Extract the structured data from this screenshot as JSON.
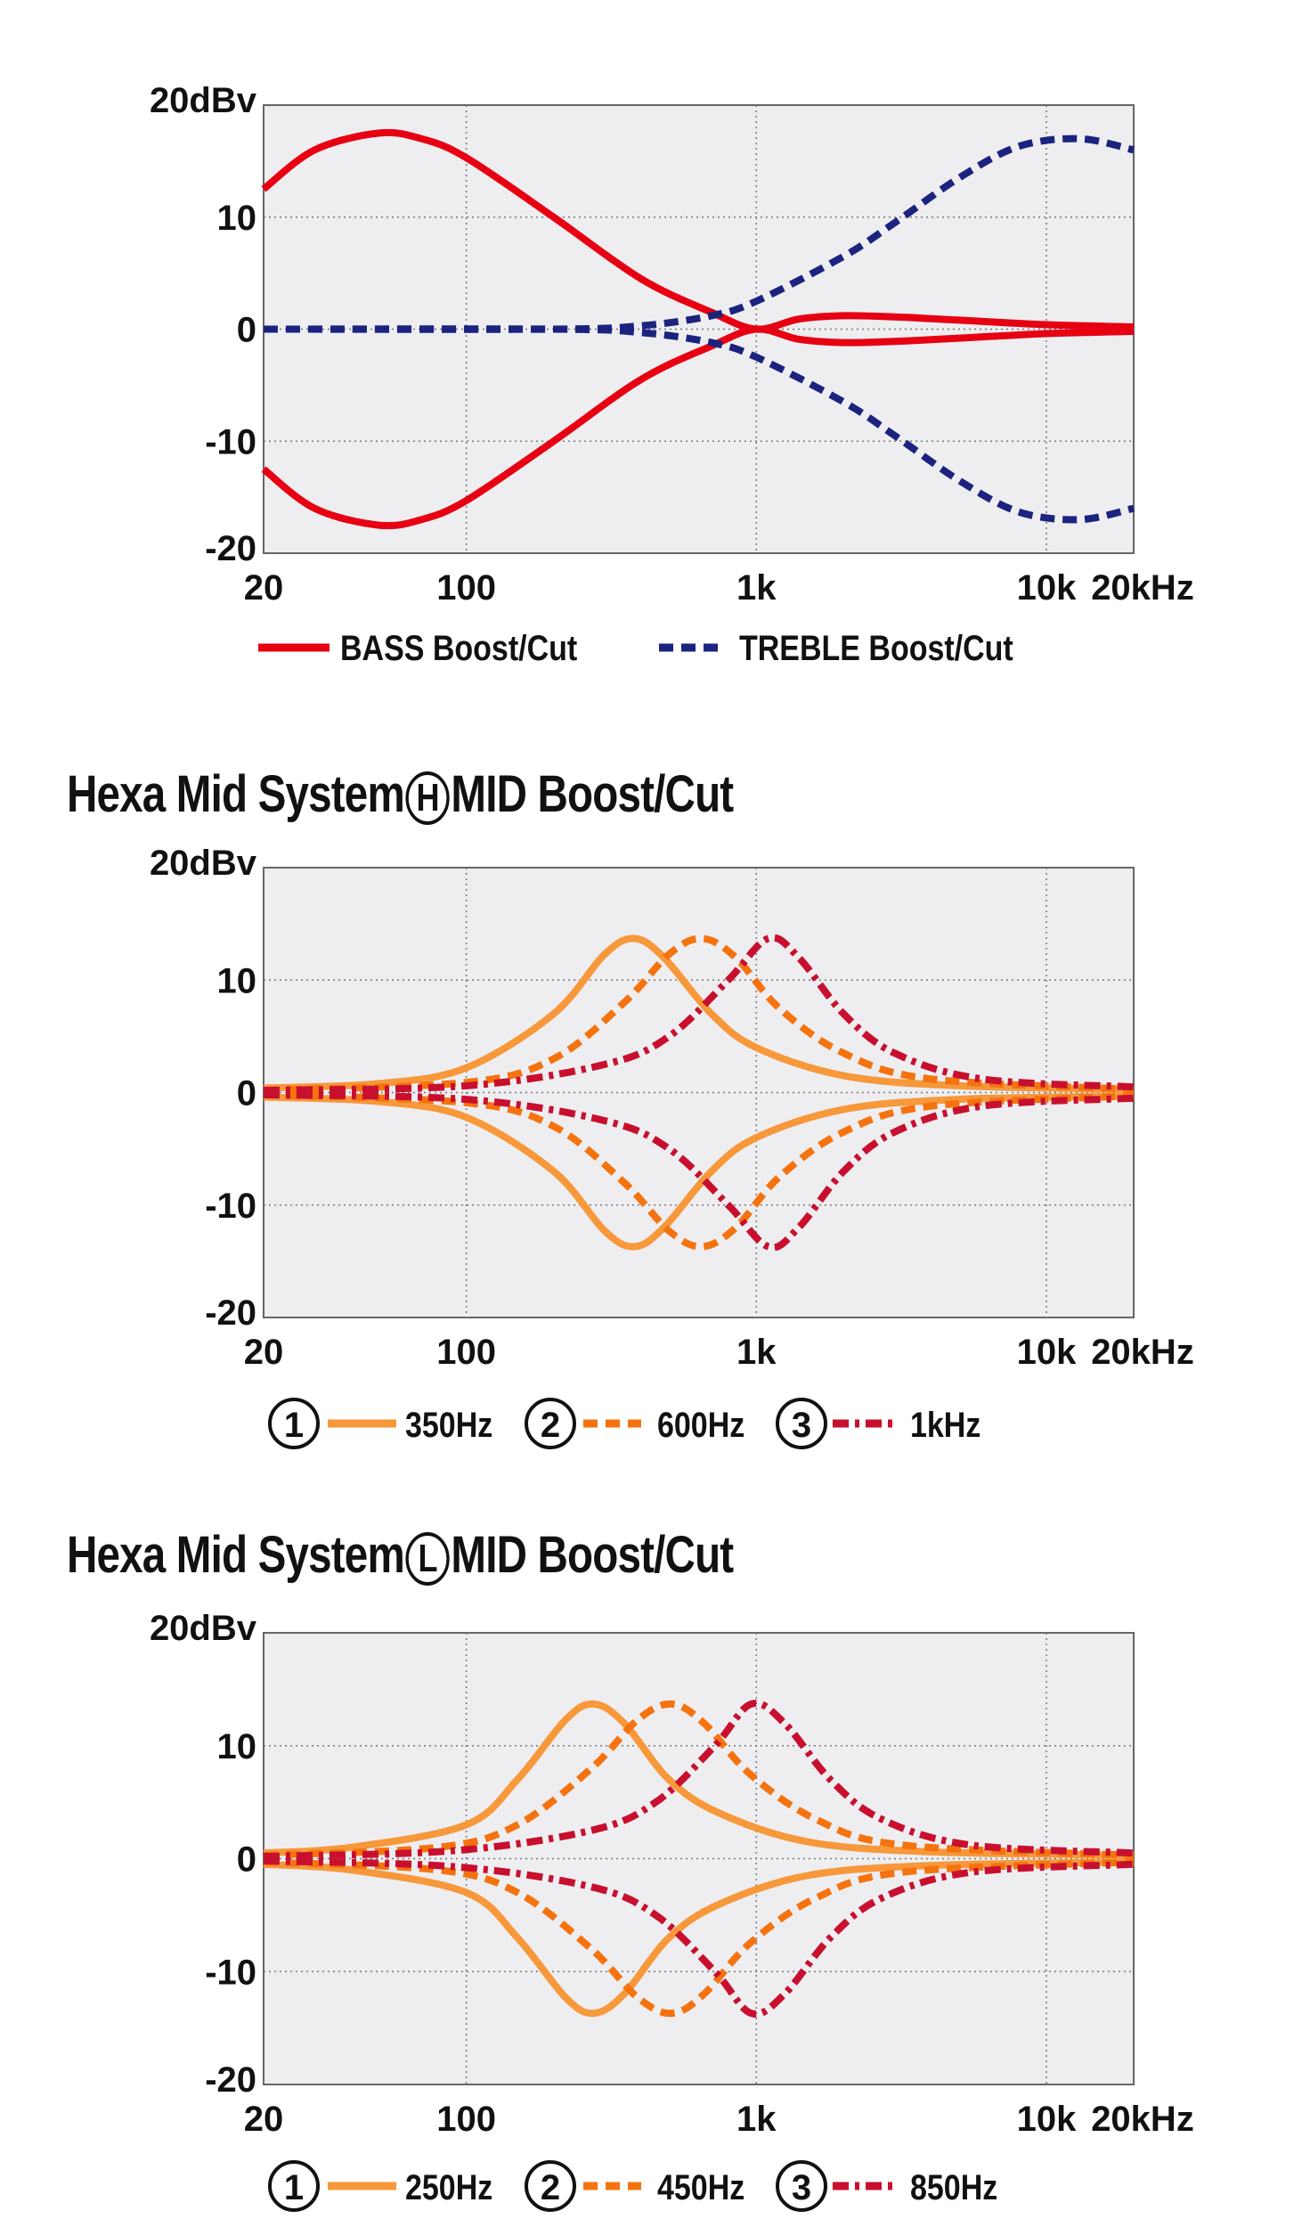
{
  "colors": {
    "plot_bg": "#eeeef1",
    "grid": "#777777",
    "bass": "#e60012",
    "treble": "#1b237f",
    "mid1": "#f7983a",
    "mid2": "#f5730f",
    "mid3": "#c8102e"
  },
  "chart_data": [
    {
      "type": "line",
      "title": "",
      "x_scale": "log",
      "xlim": [
        20,
        20000
      ],
      "ylim": [
        -20,
        20
      ],
      "grid": true,
      "legend": "bottom",
      "y_ticks": [
        {
          "v": 20,
          "label": "20dBv"
        },
        {
          "v": 10,
          "label": "10"
        },
        {
          "v": 0,
          "label": "0"
        },
        {
          "v": -10,
          "label": "-10"
        },
        {
          "v": -20,
          "label": "-20"
        }
      ],
      "x_ticks": [
        {
          "v": 20,
          "label": "20"
        },
        {
          "v": 100,
          "label": "100"
        },
        {
          "v": 1000,
          "label": "1k"
        },
        {
          "v": 10000,
          "label": "10k"
        },
        {
          "v": 20000,
          "label": "20kHz"
        }
      ],
      "legend_entries": [
        {
          "label": "BASS Boost/Cut",
          "style": "solid",
          "color": "#e60012",
          "marker": ""
        },
        {
          "label": "TREBLE Boost/Cut",
          "style": "dashed",
          "color": "#1b237f",
          "marker": ""
        }
      ],
      "series": [
        {
          "legend": 0,
          "style": "solid",
          "color": "#e60012",
          "points": [
            [
              20,
              12.5
            ],
            [
              30,
              16
            ],
            [
              50,
              17.5
            ],
            [
              70,
              17
            ],
            [
              100,
              15.3
            ],
            [
              200,
              10
            ],
            [
              400,
              4.5
            ],
            [
              700,
              1.5
            ],
            [
              1000,
              0
            ],
            [
              1400,
              0.9
            ],
            [
              2000,
              1.2
            ],
            [
              3000,
              1.1
            ],
            [
              5000,
              0.8
            ],
            [
              10000,
              0.4
            ],
            [
              20000,
              0.2
            ]
          ]
        },
        {
          "legend": 0,
          "style": "solid",
          "color": "#e60012",
          "points": [
            [
              20,
              -12.5
            ],
            [
              30,
              -16
            ],
            [
              50,
              -17.5
            ],
            [
              70,
              -17
            ],
            [
              100,
              -15.3
            ],
            [
              200,
              -10
            ],
            [
              400,
              -4.5
            ],
            [
              700,
              -1.5
            ],
            [
              1000,
              0
            ],
            [
              1400,
              -0.9
            ],
            [
              2000,
              -1.2
            ],
            [
              3000,
              -1.1
            ],
            [
              5000,
              -0.8
            ],
            [
              10000,
              -0.4
            ],
            [
              20000,
              -0.2
            ]
          ]
        },
        {
          "legend": 1,
          "style": "dashed",
          "color": "#1b237f",
          "points": [
            [
              20,
              0
            ],
            [
              200,
              0
            ],
            [
              400,
              0.3
            ],
            [
              700,
              1.2
            ],
            [
              1000,
              2.5
            ],
            [
              2000,
              6.5
            ],
            [
              3000,
              9.5
            ],
            [
              5000,
              13.5
            ],
            [
              8000,
              16.3
            ],
            [
              13000,
              17
            ],
            [
              20000,
              16
            ]
          ]
        },
        {
          "legend": 1,
          "style": "dashed",
          "color": "#1b237f",
          "points": [
            [
              20,
              0
            ],
            [
              200,
              0
            ],
            [
              400,
              -0.3
            ],
            [
              700,
              -1.2
            ],
            [
              1000,
              -2.5
            ],
            [
              2000,
              -6.5
            ],
            [
              3000,
              -9.5
            ],
            [
              5000,
              -13.5
            ],
            [
              8000,
              -16.3
            ],
            [
              13000,
              -17
            ],
            [
              20000,
              -16
            ]
          ]
        }
      ]
    },
    {
      "type": "line",
      "title": "Hexa Mid System",
      "title_circled": "H",
      "title_suffix": "MID Boost/Cut",
      "x_scale": "log",
      "xlim": [
        20,
        20000
      ],
      "ylim": [
        -20,
        20
      ],
      "grid": true,
      "legend": "bottom",
      "y_ticks": [
        {
          "v": 20,
          "label": "20dBv"
        },
        {
          "v": 10,
          "label": "10"
        },
        {
          "v": 0,
          "label": "0"
        },
        {
          "v": -10,
          "label": "-10"
        },
        {
          "v": -20,
          "label": "-20"
        }
      ],
      "x_ticks": [
        {
          "v": 20,
          "label": "20"
        },
        {
          "v": 100,
          "label": "100"
        },
        {
          "v": 1000,
          "label": "1k"
        },
        {
          "v": 10000,
          "label": "10k"
        },
        {
          "v": 20000,
          "label": "20kHz"
        }
      ],
      "legend_entries": [
        {
          "label": "350Hz",
          "style": "solid",
          "color": "#f7983a",
          "marker": "1"
        },
        {
          "label": "600Hz",
          "style": "dashed",
          "color": "#f5730f",
          "marker": "2"
        },
        {
          "label": "1kHz",
          "style": "dashdot",
          "color": "#c8102e",
          "marker": "3"
        }
      ],
      "series": [
        {
          "legend": 0,
          "style": "solid",
          "color": "#f7983a",
          "points": [
            [
              20,
              0.4
            ],
            [
              50,
              0.8
            ],
            [
              100,
              2.2
            ],
            [
              200,
              7
            ],
            [
              300,
              12.3
            ],
            [
              380,
              13.7
            ],
            [
              480,
              12
            ],
            [
              700,
              7
            ],
            [
              1000,
              4
            ],
            [
              2000,
              1.5
            ],
            [
              5000,
              0.6
            ],
            [
              20000,
              0.3
            ]
          ]
        },
        {
          "legend": 0,
          "style": "solid",
          "color": "#f7983a",
          "points": [
            [
              20,
              -0.4
            ],
            [
              50,
              -0.8
            ],
            [
              100,
              -2.2
            ],
            [
              200,
              -7
            ],
            [
              300,
              -12.3
            ],
            [
              380,
              -13.7
            ],
            [
              480,
              -12
            ],
            [
              700,
              -7
            ],
            [
              1000,
              -4
            ],
            [
              2000,
              -1.5
            ],
            [
              5000,
              -0.6
            ],
            [
              20000,
              -0.3
            ]
          ]
        },
        {
          "legend": 1,
          "style": "dashed",
          "color": "#f5730f",
          "points": [
            [
              20,
              0.2
            ],
            [
              100,
              0.9
            ],
            [
              200,
              3
            ],
            [
              350,
              8
            ],
            [
              500,
              12.3
            ],
            [
              650,
              13.7
            ],
            [
              850,
              12
            ],
            [
              1200,
              7.5
            ],
            [
              2000,
              3.5
            ],
            [
              4000,
              1.2
            ],
            [
              20000,
              0.3
            ]
          ]
        },
        {
          "legend": 1,
          "style": "dashed",
          "color": "#f5730f",
          "points": [
            [
              20,
              -0.2
            ],
            [
              100,
              -0.9
            ],
            [
              200,
              -3
            ],
            [
              350,
              -8
            ],
            [
              500,
              -12.3
            ],
            [
              650,
              -13.7
            ],
            [
              850,
              -12
            ],
            [
              1200,
              -7.5
            ],
            [
              2000,
              -3.5
            ],
            [
              4000,
              -1.2
            ],
            [
              20000,
              -0.3
            ]
          ]
        },
        {
          "legend": 2,
          "style": "dashdot",
          "color": "#c8102e",
          "points": [
            [
              20,
              0.2
            ],
            [
              100,
              0.6
            ],
            [
              300,
              2.5
            ],
            [
              500,
              5
            ],
            [
              800,
              10
            ],
            [
              1100,
              13.7
            ],
            [
              1400,
              12
            ],
            [
              2000,
              7
            ],
            [
              3000,
              3.5
            ],
            [
              6000,
              1.2
            ],
            [
              20000,
              0.5
            ]
          ]
        },
        {
          "legend": 2,
          "style": "dashdot",
          "color": "#c8102e",
          "points": [
            [
              20,
              -0.2
            ],
            [
              100,
              -0.6
            ],
            [
              300,
              -2.5
            ],
            [
              500,
              -5
            ],
            [
              800,
              -10
            ],
            [
              1100,
              -13.7
            ],
            [
              1400,
              -12
            ],
            [
              2000,
              -7
            ],
            [
              3000,
              -3.5
            ],
            [
              6000,
              -1.2
            ],
            [
              20000,
              -0.5
            ]
          ]
        }
      ]
    },
    {
      "type": "line",
      "title": "Hexa Mid System",
      "title_circled": "L",
      "title_suffix": "MID Boost/Cut",
      "x_scale": "log",
      "xlim": [
        20,
        20000
      ],
      "ylim": [
        -20,
        20
      ],
      "grid": true,
      "legend": "bottom",
      "y_ticks": [
        {
          "v": 20,
          "label": "20dBv"
        },
        {
          "v": 10,
          "label": "10"
        },
        {
          "v": 0,
          "label": "0"
        },
        {
          "v": -10,
          "label": "-10"
        },
        {
          "v": -20,
          "label": "-20"
        }
      ],
      "x_ticks": [
        {
          "v": 20,
          "label": "20"
        },
        {
          "v": 100,
          "label": "100"
        },
        {
          "v": 1000,
          "label": "1k"
        },
        {
          "v": 10000,
          "label": "10k"
        },
        {
          "v": 20000,
          "label": "20kHz"
        }
      ],
      "legend_entries": [
        {
          "label": "250Hz",
          "style": "solid",
          "color": "#f7983a",
          "marker": "1"
        },
        {
          "label": "450Hz",
          "style": "dashed",
          "color": "#f5730f",
          "marker": "2"
        },
        {
          "label": "850Hz",
          "style": "dashdot",
          "color": "#c8102e",
          "marker": "3"
        }
      ],
      "series": [
        {
          "legend": 0,
          "style": "solid",
          "color": "#f7983a",
          "points": [
            [
              20,
              0.5
            ],
            [
              40,
              1
            ],
            [
              100,
              3
            ],
            [
              150,
              7
            ],
            [
              220,
              12.3
            ],
            [
              275,
              13.7
            ],
            [
              350,
              12
            ],
            [
              500,
              7
            ],
            [
              750,
              4
            ],
            [
              1500,
              1.5
            ],
            [
              4000,
              0.6
            ],
            [
              20000,
              0.3
            ]
          ]
        },
        {
          "legend": 0,
          "style": "solid",
          "color": "#f7983a",
          "points": [
            [
              20,
              -0.5
            ],
            [
              40,
              -1
            ],
            [
              100,
              -3
            ],
            [
              150,
              -7
            ],
            [
              220,
              -12.3
            ],
            [
              275,
              -13.7
            ],
            [
              350,
              -12
            ],
            [
              500,
              -7
            ],
            [
              750,
              -4
            ],
            [
              1500,
              -1.5
            ],
            [
              4000,
              -0.6
            ],
            [
              20000,
              -0.3
            ]
          ]
        },
        {
          "legend": 1,
          "style": "dashed",
          "color": "#f5730f",
          "points": [
            [
              20,
              0.3
            ],
            [
              80,
              1
            ],
            [
              150,
              3
            ],
            [
              270,
              8
            ],
            [
              390,
              12.3
            ],
            [
              510,
              13.7
            ],
            [
              660,
              12
            ],
            [
              950,
              7.5
            ],
            [
              1600,
              3.5
            ],
            [
              3200,
              1.2
            ],
            [
              20000,
              0.3
            ]
          ]
        },
        {
          "legend": 1,
          "style": "dashed",
          "color": "#f5730f",
          "points": [
            [
              20,
              -0.3
            ],
            [
              80,
              -1
            ],
            [
              150,
              -3
            ],
            [
              270,
              -8
            ],
            [
              390,
              -12.3
            ],
            [
              510,
              -13.7
            ],
            [
              660,
              -12
            ],
            [
              950,
              -7.5
            ],
            [
              1600,
              -3.5
            ],
            [
              3200,
              -1.2
            ],
            [
              20000,
              -0.3
            ]
          ]
        },
        {
          "legend": 2,
          "style": "dashdot",
          "color": "#c8102e",
          "points": [
            [
              20,
              0.2
            ],
            [
              90,
              0.7
            ],
            [
              270,
              2.5
            ],
            [
              450,
              5
            ],
            [
              720,
              10
            ],
            [
              960,
              13.7
            ],
            [
              1250,
              12
            ],
            [
              1800,
              7
            ],
            [
              2700,
              3.5
            ],
            [
              5500,
              1.2
            ],
            [
              20000,
              0.5
            ]
          ]
        },
        {
          "legend": 2,
          "style": "dashdot",
          "color": "#c8102e",
          "points": [
            [
              20,
              -0.2
            ],
            [
              90,
              -0.7
            ],
            [
              270,
              -2.5
            ],
            [
              450,
              -5
            ],
            [
              720,
              -10
            ],
            [
              960,
              -13.7
            ],
            [
              1250,
              -12
            ],
            [
              1800,
              -7
            ],
            [
              2700,
              -3.5
            ],
            [
              5500,
              -1.2
            ],
            [
              20000,
              -0.5
            ]
          ]
        }
      ]
    }
  ]
}
